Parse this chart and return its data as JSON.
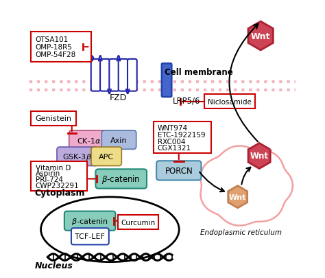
{
  "fig_width": 4.74,
  "fig_height": 4.06,
  "dpi": 100,
  "bg_color": "#ffffff",
  "border_color": "#cccccc",
  "cell_membrane_label": "Cell membrane",
  "cytoplasm_label": "Cytoplasm",
  "nucleus_label": "Nucleus",
  "er_label": "Endoplasmic reticulum",
  "fzd_label": "FZD",
  "lrp_label": "LRP5/6",
  "box_border_color": "#cc0000",
  "inhibitor_color": "#cc0000",
  "helix_color": "#2222aa",
  "lrp_face": "#4466cc",
  "lrp_edge": "#2244aa",
  "ck_face": "#f0aacc",
  "ck_edge": "#aa5577",
  "axin_face": "#aabbdd",
  "axin_edge": "#5577aa",
  "gsk_face": "#bbaadd",
  "gsk_edge": "#6655aa",
  "apc_face": "#eedd88",
  "apc_edge": "#997722",
  "bcat_face": "#88ccbb",
  "bcat_edge": "#228877",
  "porcn_face": "#aaccdd",
  "porcn_edge": "#4488aa",
  "tcf_edge": "#2244aa",
  "wnt_top_face": "#cc4455",
  "wnt_top_edge": "#aa2233",
  "wnt_mid_face": "#cc4455",
  "wnt_mid_edge": "#aa2233",
  "wnt_bot_face": "#e0a070",
  "wnt_bot_edge": "#c08050",
  "er_outline": "#f08080",
  "membrane_dot": "#f0a0b0",
  "arrow_color": "#000000"
}
